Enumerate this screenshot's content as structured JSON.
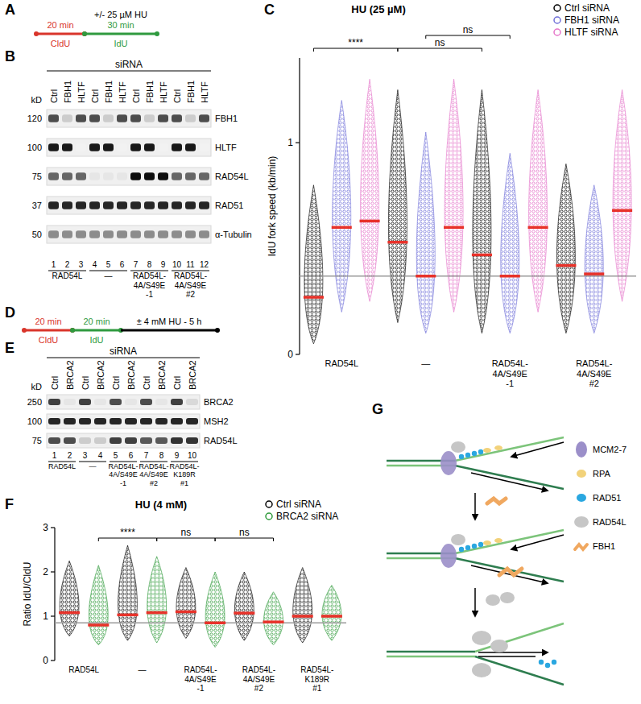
{
  "panel_labels": [
    "A",
    "B",
    "C",
    "D",
    "E",
    "F",
    "G"
  ],
  "panel_a": {
    "treatment": "+/- 25 µM HU",
    "segments": [
      {
        "label": "CldU",
        "duration": "20 min",
        "color": "#d9352b"
      },
      {
        "label": "IdU",
        "duration": "30 min",
        "color": "#2f9a3f"
      }
    ]
  },
  "panel_b": {
    "header": "siRNA",
    "kd_label": "kD",
    "lanes": [
      "Ctrl",
      "FBH1",
      "HLTF",
      "Ctrl",
      "FBH1",
      "HLTF",
      "Ctrl",
      "FBH1",
      "HLTF",
      "Ctrl",
      "FBH1",
      "HLTF"
    ],
    "lane_numbers": [
      1,
      2,
      3,
      4,
      5,
      6,
      7,
      8,
      9,
      10,
      11,
      12
    ],
    "groups": [
      {
        "label": "RAD54L",
        "lanes": [
          1,
          2,
          3
        ]
      },
      {
        "label": "—",
        "lanes": [
          4,
          5,
          6
        ]
      },
      {
        "label": "RAD54L-\n4A/S49E\n-1",
        "lanes": [
          7,
          8,
          9
        ]
      },
      {
        "label": "RAD54L-\n4A/S49E\n#2",
        "lanes": [
          10,
          11,
          12
        ]
      }
    ],
    "rows": [
      {
        "protein": "FBH1",
        "kd": 120,
        "bands": [
          0.7,
          0.2,
          0.7,
          0.7,
          0.2,
          0.7,
          0.7,
          0.2,
          0.7,
          0.7,
          0.2,
          0.7
        ]
      },
      {
        "protein": "HLTF",
        "kd": 100,
        "bands": [
          0.9,
          0.9,
          0.05,
          0.9,
          0.9,
          0.05,
          0.9,
          0.9,
          0.05,
          0.9,
          0.9,
          0.05
        ]
      },
      {
        "protein": "RAD54L",
        "kd": 75,
        "bands": [
          0.6,
          0.6,
          0.6,
          0.1,
          0.1,
          0.1,
          0.95,
          0.95,
          0.95,
          0.6,
          0.6,
          0.6
        ]
      },
      {
        "protein": "RAD51",
        "kd": 37,
        "bands": [
          0.85,
          0.85,
          0.85,
          0.85,
          0.85,
          0.85,
          0.85,
          0.85,
          0.85,
          0.85,
          0.85,
          0.85
        ]
      },
      {
        "protein": "α-Tubulin",
        "kd": 50,
        "bands": [
          0.45,
          0.45,
          0.45,
          0.45,
          0.45,
          0.45,
          0.45,
          0.45,
          0.45,
          0.45,
          0.45,
          0.45
        ]
      }
    ]
  },
  "panel_d": {
    "treatment": "± 4 mM HU - 5 h",
    "segments": [
      {
        "label": "CldU",
        "duration": "20 min",
        "color": "#d9352b"
      },
      {
        "label": "IdU",
        "duration": "20 min",
        "color": "#2f9a3f"
      }
    ]
  },
  "panel_e": {
    "header": "siRNA",
    "kd_label": "kD",
    "lanes": [
      "Ctrl",
      "BRCA2",
      "Ctrl",
      "BRCA2",
      "Ctrl",
      "BRCA2",
      "Ctrl",
      "BRCA2",
      "Ctrl",
      "BRCA2"
    ],
    "lane_numbers": [
      1,
      2,
      3,
      4,
      5,
      6,
      7,
      8,
      9,
      10
    ],
    "groups": [
      {
        "label": "RAD54L",
        "lanes": [
          1,
          2
        ]
      },
      {
        "label": "—",
        "lanes": [
          3,
          4
        ]
      },
      {
        "label": "RAD54L-\n4A/S49E\n-1",
        "lanes": [
          5,
          6
        ]
      },
      {
        "label": "RAD54L-\n4A/S49E\n#2",
        "lanes": [
          7,
          8
        ]
      },
      {
        "label": "RAD54L-\nK189R\n#1",
        "lanes": [
          9,
          10
        ]
      }
    ],
    "rows": [
      {
        "protein": "BRCA2",
        "kd": 250,
        "bands": [
          0.75,
          0.1,
          0.75,
          0.1,
          0.7,
          0.1,
          0.7,
          0.1,
          0.75,
          0.15
        ]
      },
      {
        "protein": "MSH2",
        "kd": 100,
        "bands": [
          0.85,
          0.85,
          0.85,
          0.85,
          0.85,
          0.85,
          0.85,
          0.85,
          0.85,
          0.85
        ]
      },
      {
        "protein": "RAD54L",
        "kd": 75,
        "bands": [
          0.7,
          0.7,
          0.2,
          0.2,
          0.75,
          0.75,
          0.65,
          0.65,
          0.8,
          0.8
        ]
      }
    ]
  },
  "chart_data": [
    {
      "type": "strip",
      "title": "HU (25 µM)",
      "y_label": "IdU fork speed (kb/min)",
      "categories": [
        "RAD54L",
        "—",
        "RAD54L-\n4A/S49E\n-1",
        "RAD54L-\n4A/S49E\n#2"
      ],
      "series": [
        {
          "name": "Ctrl siRNA",
          "color": "#000000",
          "marker": "open-circle",
          "values": [
            0.27,
            0.53,
            0.47,
            0.42
          ],
          "min": [
            0.05,
            0.15,
            0.1,
            0.1
          ],
          "max": [
            0.8,
            1.25,
            1.25,
            0.9
          ]
        },
        {
          "name": "FBH1 siRNA",
          "color": "#6f6fd8",
          "marker": "open-circle",
          "values": [
            0.6,
            0.37,
            0.37,
            0.38
          ],
          "min": [
            0.2,
            0.1,
            0.1,
            0.1
          ],
          "max": [
            1.2,
            1.05,
            0.95,
            0.8
          ]
        },
        {
          "name": "HLTF siRNA",
          "color": "#e575c9",
          "marker": "open-circle",
          "values": [
            0.63,
            0.6,
            0.6,
            0.68
          ],
          "min": [
            0.25,
            0.2,
            0.2,
            0.25
          ],
          "max": [
            1.3,
            1.3,
            1.25,
            1.25
          ]
        }
      ],
      "reference_line": 0.37,
      "comparisons": [
        {
          "from": [
            0,
            0
          ],
          "to": [
            1,
            0
          ],
          "label": "****"
        },
        {
          "from": [
            1,
            0
          ],
          "to": [
            2,
            0
          ],
          "label": "ns"
        },
        {
          "from": [
            1,
            1
          ],
          "to": [
            2,
            1
          ],
          "label": "ns"
        }
      ],
      "ylim": [
        0,
        1.4
      ],
      "yticks": [
        0,
        1
      ],
      "legend": "top-right"
    },
    {
      "type": "strip",
      "title": "HU (4 mM)",
      "y_label": "Ratio IdU/CldU",
      "categories": [
        "RAD54L",
        "—",
        "RAD54L-\n4A/S49E\n-1",
        "RAD54L-\n4A/S49E\n#2",
        "RAD54L-\nK189R\n#1"
      ],
      "series": [
        {
          "name": "Ctrl siRNA",
          "color": "#000000",
          "marker": "open-circle",
          "values": [
            1.08,
            1.03,
            1.1,
            1.07,
            1.0
          ],
          "min": [
            0.55,
            0.45,
            0.5,
            0.45,
            0.4
          ],
          "max": [
            2.25,
            2.6,
            2.1,
            2.0,
            2.1
          ]
        },
        {
          "name": "BRCA2 siRNA",
          "color": "#2e9a3a",
          "marker": "open-circle",
          "values": [
            0.8,
            1.08,
            0.85,
            0.87,
            1.0
          ],
          "min": [
            0.35,
            0.4,
            0.3,
            0.35,
            0.45
          ],
          "max": [
            2.15,
            2.35,
            2.0,
            1.55,
            1.7
          ]
        }
      ],
      "reference_line": 0.85,
      "comparisons": [
        {
          "from": [
            0,
            1
          ],
          "to": [
            1,
            1
          ],
          "label": "****"
        },
        {
          "from": [
            1,
            1
          ],
          "to": [
            2,
            1
          ],
          "label": "ns"
        },
        {
          "from": [
            2,
            1
          ],
          "to": [
            3,
            1
          ],
          "label": "ns"
        }
      ],
      "ylim": [
        0,
        3
      ],
      "yticks": [
        0,
        1,
        2,
        3
      ],
      "legend": "top-right"
    }
  ],
  "panel_g": {
    "legend": [
      {
        "label": "MCM2-7",
        "color": "#9b8fc9"
      },
      {
        "label": "RPA",
        "color": "#f2d27a"
      },
      {
        "label": "RAD51",
        "color": "#2aa7e0"
      },
      {
        "label": "RAD54L",
        "color": "#c6c6c6"
      },
      {
        "label": "FBH1",
        "color": "#f0a860"
      }
    ]
  }
}
